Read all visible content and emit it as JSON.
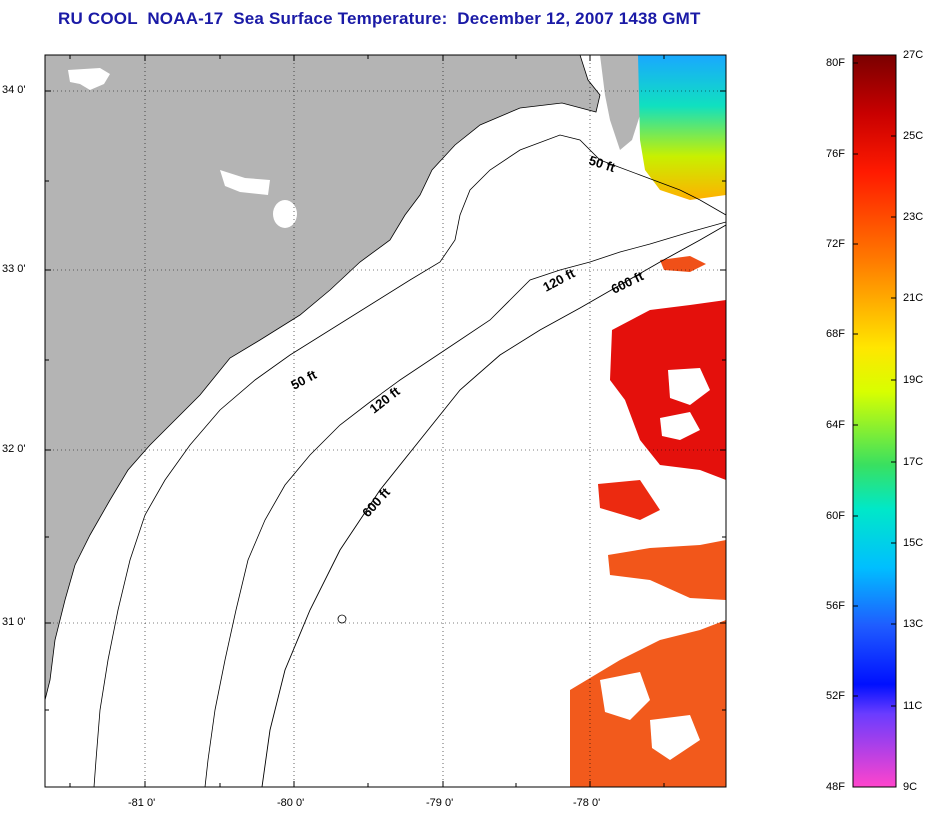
{
  "title": "RU COOL  NOAA-17  Sea Surface Temperature:  December 12, 2007 1438 GMT",
  "map": {
    "lat_labels": [
      "34 0'",
      "33 0'",
      "32 0'",
      "31 0'"
    ],
    "lon_labels": [
      "-81 0'",
      "-80 0'",
      "-79 0'",
      "-78 0'"
    ],
    "isobath_labels": [
      "50 ft",
      "50 ft",
      "120 ft",
      "120 ft",
      "600 ft",
      "600 ft"
    ],
    "land_color": "#b4b4b4"
  },
  "colorbar": {
    "fahrenheit_labels": [
      "80F",
      "76F",
      "72F",
      "68F",
      "64F",
      "60F",
      "56F",
      "52F",
      "48F"
    ],
    "celsius_labels": [
      "27C",
      "25C",
      "23C",
      "21C",
      "19C",
      "17C",
      "15C",
      "13C",
      "11C",
      "9C"
    ],
    "range_f": [
      48,
      80
    ],
    "range_c": [
      9,
      27
    ]
  }
}
